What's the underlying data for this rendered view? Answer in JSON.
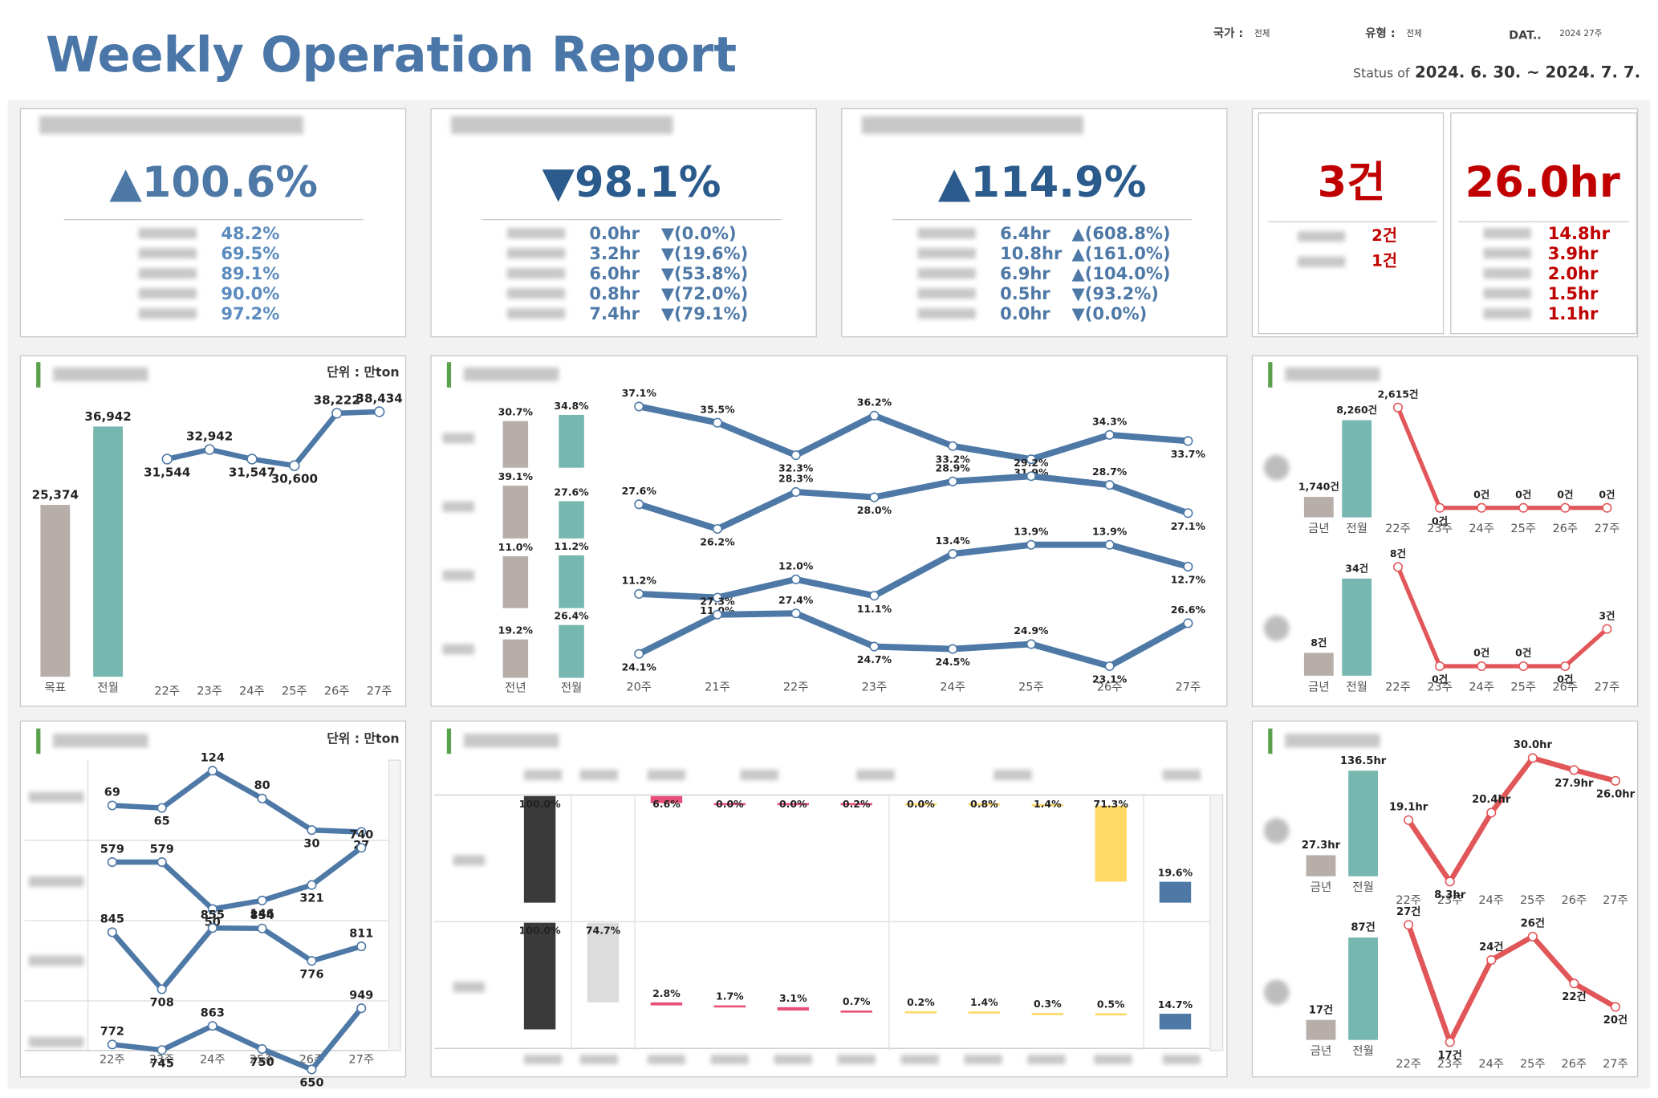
{
  "header": {
    "title": "Weekly Operation Report",
    "filters": [
      {
        "label": "국가 :",
        "value": "전체"
      },
      {
        "label": "유형 :",
        "value": "전체"
      },
      {
        "label": "DAT..",
        "value": "2024 27주"
      }
    ],
    "status_label": "Status of",
    "status_range": "2024. 6. 30. ~ 2024. 7. 7."
  },
  "kpis": [
    {
      "headline": "▲100.6%",
      "rows": [
        [
          "48.2%"
        ],
        [
          "69.5%"
        ],
        [
          "89.1%"
        ],
        [
          "90.0%"
        ],
        [
          "97.2%"
        ]
      ]
    },
    {
      "headline": "▼98.1%",
      "rows": [
        [
          "0.0hr",
          "▼(0.0%)"
        ],
        [
          "3.2hr",
          "▼(19.6%)"
        ],
        [
          "6.0hr",
          "▼(53.8%)"
        ],
        [
          "0.8hr",
          "▼(72.0%)"
        ],
        [
          "7.4hr",
          "▼(79.1%)"
        ]
      ]
    },
    {
      "headline": "▲114.9%",
      "rows": [
        [
          "6.4hr",
          "▲(608.8%)"
        ],
        [
          "10.8hr",
          "▲(161.0%)"
        ],
        [
          "6.9hr",
          "▲(104.0%)"
        ],
        [
          "0.5hr",
          "▼(93.2%)"
        ],
        [
          "0.0hr",
          "▼(0.0%)"
        ]
      ]
    }
  ],
  "incidents": {
    "count": "3건",
    "count_rows": [
      "2건",
      "1건"
    ],
    "hours": "26.0hr",
    "hours_rows": [
      "14.8hr",
      "3.9hr",
      "2.0hr",
      "1.5hr",
      "1.1hr"
    ]
  },
  "chart_data": [
    {
      "type": "combo",
      "unit": "단위 : 만ton",
      "bar_colors": [
        "#b8aea9",
        "#76b7b0"
      ],
      "line_color": "#4e79a7",
      "panels": [
        {
          "bars": {
            "categories": [
              "목표",
              "전월"
            ],
            "values": [
              25374,
              36942
            ],
            "value_labels": [
              "25,374",
              "36,942"
            ]
          },
          "line": {
            "categories": [
              "22주",
              "23주",
              "24주",
              "25주",
              "26주",
              "27주"
            ],
            "values": [
              31544,
              32942,
              31547,
              30600,
              38222,
              38434
            ],
            "value_labels": [
              "31,544",
              "32,942",
              "31,547",
              "30,600",
              "38,222",
              "38,434"
            ]
          }
        }
      ]
    },
    {
      "type": "share",
      "bar_series": [
        {
          "name": "전년",
          "color": "#b8aea9",
          "values": [
            30.7,
            39.1,
            11.0,
            19.2
          ],
          "value_labels": [
            "30.7%",
            "39.1%",
            "11.0%",
            "19.2%"
          ]
        },
        {
          "name": "전월",
          "color": "#76b7b0",
          "values": [
            34.8,
            27.6,
            11.2,
            26.4
          ],
          "value_labels": [
            "34.8%",
            "27.6%",
            "11.2%",
            "26.4%"
          ]
        }
      ],
      "x": [
        "20주",
        "21주",
        "22주",
        "23주",
        "24주",
        "25주",
        "26주",
        "27주"
      ],
      "line_color": "#4e79a7",
      "series": [
        {
          "values": [
            37.1,
            35.5,
            32.3,
            36.2,
            33.2,
            31.9,
            34.3,
            33.7
          ],
          "value_labels": [
            "37.1%",
            "35.5%",
            "32.3%",
            "36.2%",
            "33.2%",
            "31.9%",
            "34.3%",
            "33.7%"
          ]
        },
        {
          "values": [
            27.6,
            26.2,
            28.3,
            28.0,
            28.9,
            29.2,
            28.7,
            27.1
          ],
          "value_labels": [
            "27.6%",
            "26.2%",
            "28.3%",
            "28.0%",
            "28.9%",
            "29.2%",
            "28.7%",
            "27.1%"
          ]
        },
        {
          "values": [
            11.2,
            11.0,
            12.0,
            11.1,
            13.4,
            13.9,
            13.9,
            12.7
          ],
          "value_labels": [
            "11.2%",
            "11.0%",
            "12.0%",
            "11.1%",
            "13.4%",
            "13.9%",
            "13.9%",
            "12.7%"
          ]
        },
        {
          "values": [
            24.1,
            27.3,
            27.4,
            24.7,
            24.5,
            24.9,
            23.1,
            26.6
          ],
          "value_labels": [
            "24.1%",
            "27.3%",
            "27.4%",
            "24.7%",
            "24.5%",
            "24.9%",
            "23.1%",
            "26.6%"
          ]
        }
      ]
    },
    {
      "type": "combo",
      "bar_colors": [
        "#b8aea9",
        "#76b7b0"
      ],
      "line_color": "#e15759",
      "panels": [
        {
          "bars": {
            "categories": [
              "금년",
              "전월"
            ],
            "values": [
              1740,
              8260
            ],
            "value_labels": [
              "1,740건",
              "8,260건"
            ]
          },
          "line": {
            "categories": [
              "22주",
              "23주",
              "24주",
              "25주",
              "26주",
              "27주"
            ],
            "values": [
              2615,
              0,
              0,
              0,
              0,
              0
            ],
            "value_labels": [
              "2,615건",
              "0건",
              "0건",
              "0건",
              "0건",
              "0건"
            ]
          }
        },
        {
          "bars": {
            "categories": [
              "금년",
              "전월"
            ],
            "values": [
              8,
              34
            ],
            "value_labels": [
              "8건",
              "34건"
            ]
          },
          "line": {
            "categories": [
              "22주",
              "23주",
              "24주",
              "25주",
              "26주",
              "27주"
            ],
            "values": [
              8,
              0,
              0,
              0,
              0,
              3
            ],
            "value_labels": [
              "8건",
              "0건",
              "0건",
              "0건",
              "0건",
              "3건"
            ]
          }
        }
      ]
    },
    {
      "type": "multiline",
      "unit": "단위 : 만ton",
      "x": [
        "22주",
        "23주",
        "24주",
        "25주",
        "26주",
        "27주"
      ],
      "color": "#4e79a7",
      "series": [
        {
          "values": [
            69,
            65,
            124,
            80,
            30,
            27
          ]
        },
        {
          "values": [
            579,
            579,
            50,
            146,
            321,
            740
          ]
        },
        {
          "values": [
            845,
            708,
            855,
            854,
            776,
            811
          ]
        },
        {
          "values": [
            772,
            745,
            863,
            750,
            650,
            949
          ]
        }
      ]
    },
    {
      "type": "waterfall",
      "colors": [
        "#3a3a3a",
        "#dcdcdc",
        "#e8507a",
        "#e8507a",
        "#e8507a",
        "#e8507a",
        "#ffd966",
        "#ffd966",
        "#ffd966",
        "#ffd966",
        "#4e79a7"
      ],
      "rows": [
        {
          "values": [
            100.0,
            null,
            6.6,
            0.0,
            0.0,
            0.2,
            0.0,
            0.8,
            1.4,
            71.3,
            19.6
          ],
          "value_labels": [
            "100.0%",
            null,
            "6.6%",
            "0.0%",
            "0.0%",
            "0.2%",
            "0.0%",
            "0.8%",
            "1.4%",
            "71.3%",
            "19.6%"
          ]
        },
        {
          "values": [
            100.0,
            74.7,
            2.8,
            1.7,
            3.1,
            0.7,
            0.2,
            1.4,
            0.3,
            0.5,
            14.7
          ],
          "value_labels": [
            "100.0%",
            "74.7%",
            "2.8%",
            "1.7%",
            "3.1%",
            "0.7%",
            "0.2%",
            "1.4%",
            "0.3%",
            "0.5%",
            "14.7%"
          ]
        }
      ]
    },
    {
      "type": "combo",
      "bar_colors": [
        "#b8aea9",
        "#76b7b0"
      ],
      "line_color": "#e15759",
      "panels": [
        {
          "bars": {
            "categories": [
              "금년",
              "전월"
            ],
            "values": [
              27.3,
              136.5
            ],
            "value_labels": [
              "27.3hr",
              "136.5hr"
            ]
          },
          "line": {
            "categories": [
              "22주",
              "23주",
              "24주",
              "25주",
              "26주",
              "27주"
            ],
            "values": [
              19.1,
              8.3,
              20.4,
              30.0,
              27.9,
              26.0
            ],
            "value_labels": [
              "19.1hr",
              "8.3hr",
              "20.4hr",
              "30.0hr",
              "27.9hr",
              "26.0hr"
            ]
          }
        },
        {
          "bars": {
            "categories": [
              "금년",
              "전월"
            ],
            "values": [
              17,
              87
            ],
            "value_labels": [
              "17건",
              "87건"
            ]
          },
          "line": {
            "categories": [
              "22주",
              "23주",
              "24주",
              "25주",
              "26주",
              "27주"
            ],
            "values": [
              27,
              17,
              24,
              26,
              22,
              20
            ],
            "value_labels": [
              "27건",
              "17건",
              "24건",
              "26건",
              "22건",
              "20건"
            ]
          }
        }
      ]
    }
  ]
}
